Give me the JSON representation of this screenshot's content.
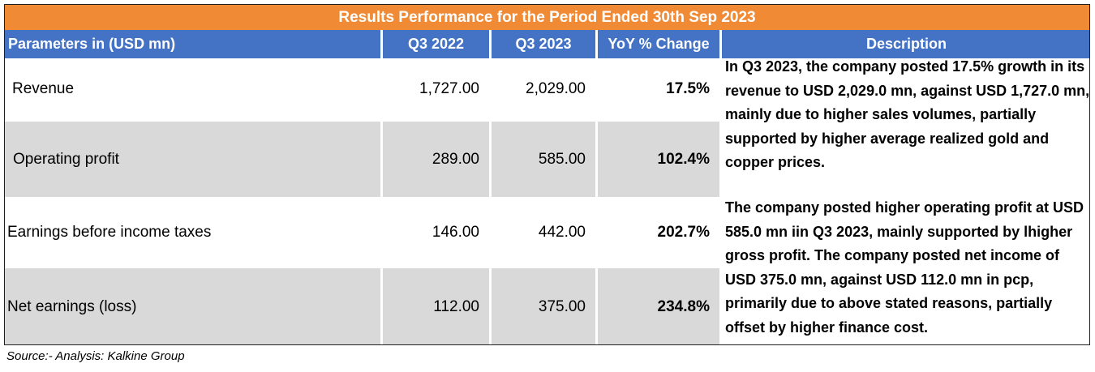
{
  "title": "Results Performance for the Period Ended 30th Sep 2023",
  "headers": {
    "parameters": "Parameters in (USD mn)",
    "q3_2022": "Q3 2022",
    "q3_2023": "Q3 2023",
    "yoy": "YoY % Change",
    "description": "Description"
  },
  "rows": [
    {
      "label": "Revenue",
      "q3_2022": "1,727.00",
      "q3_2023": "2,029.00",
      "yoy": "17.5%"
    },
    {
      "label": "Operating profit",
      "q3_2022": "289.00",
      "q3_2023": "585.00",
      "yoy": "102.4%"
    },
    {
      "label": "Earnings before income taxes",
      "q3_2022": "146.00",
      "q3_2023": "442.00",
      "yoy": "202.7%"
    },
    {
      "label": "Net earnings (loss)",
      "q3_2022": "112.00",
      "q3_2023": "375.00",
      "yoy": "234.8%"
    }
  ],
  "descriptions": [
    "In Q3 2023, the company posted 17.5% growth in its revenue to USD 2,029.0 mn, against USD 1,727.0 mn, mainly due to higher sales volumes, partially supported by higher average realized gold and copper prices.",
    "The company posted higher operating profit at USD 585.0 mn iin Q3 2023, mainly supported by lhigher gross profit. The company posted net income of USD 375.0 mn, against USD 112.0 mn in pcp, primarily due to above stated reasons, partially offset by higher finance cost."
  ],
  "source": "Source:- Analysis: Kalkine Group",
  "colors": {
    "title_bg": "#f08a35",
    "header_bg": "#4472c4",
    "alt_row_bg": "#d9d9d9"
  }
}
